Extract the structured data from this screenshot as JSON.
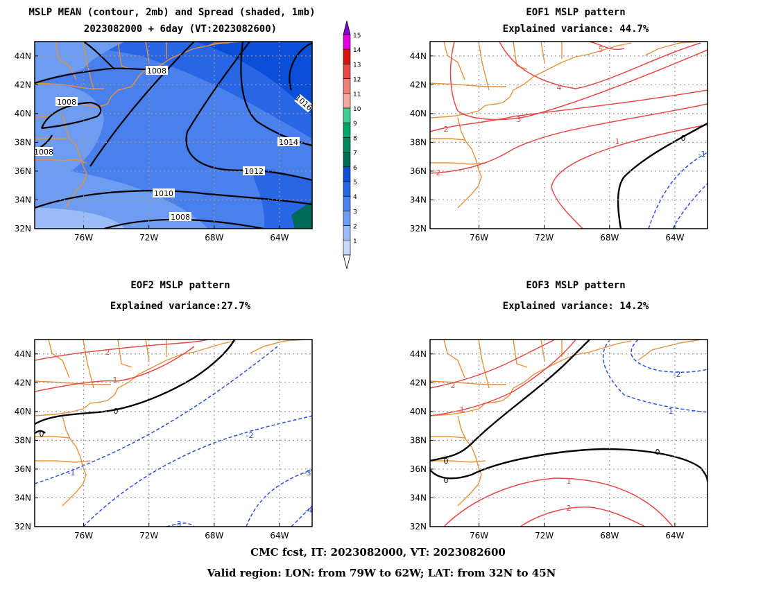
{
  "panels": {
    "p1": {
      "title": "MSLP MEAN (contour, 2mb) and Spread (shaded, 1mb)",
      "subtitle": "2023082000 + 6day (VT:2023082600)"
    },
    "p2": {
      "title": "EOF1 MSLP pattern",
      "subtitle": "Explained variance: 44.7%"
    },
    "p3": {
      "title": "EOF2 MSLP pattern",
      "subtitle": "Explained variance:27.7%"
    },
    "p4": {
      "title": "EOF3 MSLP pattern",
      "subtitle": "Explained variance: 14.2%"
    }
  },
  "footer": {
    "line1": "CMC fcst, IT: 2023082000, VT: 2023082600",
    "line2": "Valid region: LON: from 79W to 62W; LAT: from 32N to 45N"
  },
  "map": {
    "lon_range": [
      -79,
      -62
    ],
    "lat_range": [
      32,
      45
    ],
    "lon_ticks": [
      "76W",
      "72W",
      "68W",
      "64W"
    ],
    "lat_ticks": [
      "32N",
      "34N",
      "36N",
      "38N",
      "40N",
      "42N",
      "44N"
    ]
  },
  "colorbar": {
    "labels": [
      "1",
      "2",
      "3",
      "4",
      "5",
      "6",
      "7",
      "8",
      "9",
      "10",
      "11",
      "12",
      "13",
      "14",
      "15"
    ],
    "colors": [
      "#c9d9fb",
      "#9bbcf6",
      "#6d9cf0",
      "#4a80ec",
      "#2966e6",
      "#0b4fd8",
      "#006a5a",
      "#00885c",
      "#00a568",
      "#3ecf8e",
      "#f4a8a0",
      "#ef7e78",
      "#e84848",
      "#d81212",
      "#e000e0"
    ],
    "top_color": "#8a00d0"
  },
  "contours_p1": [
    "1008",
    "1008",
    "1008",
    "1010",
    "1012",
    "1014",
    "1016",
    "1008",
    "1008"
  ],
  "contours_p2": [
    "5",
    "4",
    "3",
    "2",
    "2",
    "1",
    "0",
    "-1"
  ],
  "contours_p3": [
    "2",
    "1",
    "0",
    "0",
    "-1",
    "-2",
    "-3",
    "-3",
    "-4"
  ],
  "contours_p4": [
    "2",
    "1",
    "0",
    "0",
    "0",
    "-1",
    "-2",
    "1",
    "2"
  ]
}
